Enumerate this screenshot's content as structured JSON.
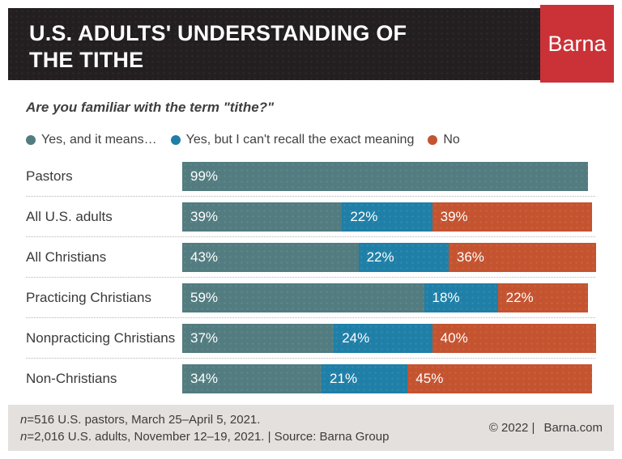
{
  "header": {
    "title_line1": "U.S. ADULTS' UNDERSTANDING OF",
    "title_line2": "THE TITHE",
    "brand": "Barna"
  },
  "question": "Are you familiar with the term \"tithe?\"",
  "legend": [
    {
      "label": "Yes, and it means…",
      "color": "#527c80"
    },
    {
      "label": "Yes, but I can't recall the exact meaning",
      "color": "#1f7fa7"
    },
    {
      "label": "No",
      "color": "#c45330"
    }
  ],
  "chart_data": {
    "type": "bar",
    "orientation": "horizontal",
    "stacked": true,
    "title": "U.S. Adults' Understanding of the Tithe",
    "categories": [
      "Pastors",
      "All U.S. adults",
      "All Christians",
      "Practicing Christians",
      "Nonpracticing Christians",
      "Non-Christians"
    ],
    "series": [
      {
        "name": "Yes, and it means…",
        "color": "#527c80",
        "values": [
          99,
          39,
          43,
          59,
          37,
          34
        ]
      },
      {
        "name": "Yes, but I can't recall the exact meaning",
        "color": "#1f7fa7",
        "values": [
          null,
          22,
          22,
          18,
          24,
          21
        ]
      },
      {
        "name": "No",
        "color": "#c45330",
        "values": [
          null,
          39,
          36,
          22,
          40,
          45
        ]
      }
    ],
    "value_suffix": "%",
    "xlim": [
      0,
      100
    ],
    "grid": false,
    "legend_position": "top"
  },
  "footer": {
    "n1_italic": "n",
    "n1_text": "=516 U.S. pastors, March 25–April 5, 2021.",
    "n2_italic": "n",
    "n2_text": "=2,016 U.S. adults, November 12–19, 2021. | Source: Barna Group",
    "copyright": "© 2022 |",
    "site": "Barna.com"
  },
  "colors": {
    "header_bg": "#231f20",
    "brand_red": "#ca3238",
    "teal": "#527c80",
    "blue": "#1f7fa7",
    "orange": "#c45330",
    "footer_bg": "#e4e0dd",
    "text_dark": "#3c3c3c",
    "separator": "#b5b5b5"
  }
}
